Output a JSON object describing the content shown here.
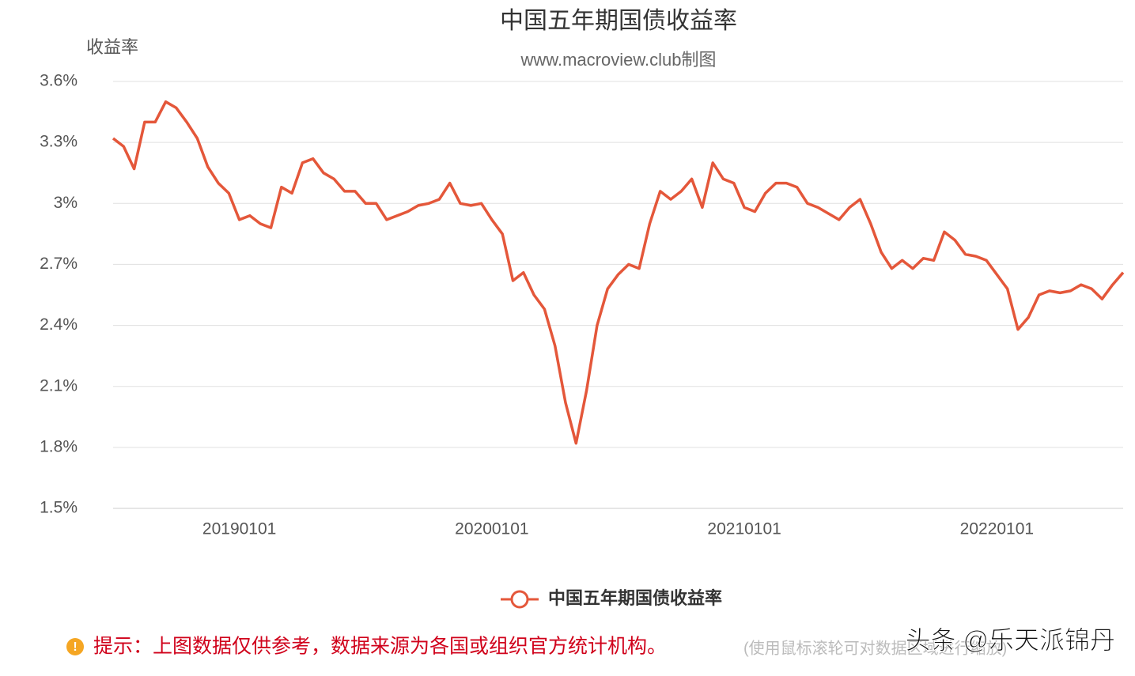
{
  "chart_data": {
    "type": "line",
    "title": "中国五年期国债收益率",
    "subtitle": "www.macroview.club制图",
    "y_label": "收益率",
    "categories": [
      "20180701",
      "20180716",
      "20180801",
      "20180816",
      "20180901",
      "20180916",
      "20181001",
      "20181016",
      "20181101",
      "20181116",
      "20181201",
      "20181216",
      "20190101",
      "20190116",
      "20190201",
      "20190216",
      "20190301",
      "20190316",
      "20190401",
      "20190416",
      "20190501",
      "20190516",
      "20190601",
      "20190616",
      "20190701",
      "20190716",
      "20190801",
      "20190816",
      "20190901",
      "20190916",
      "20191001",
      "20191016",
      "20191101",
      "20191116",
      "20191201",
      "20191216",
      "20200101",
      "20200116",
      "20200201",
      "20200216",
      "20200301",
      "20200316",
      "20200401",
      "20200416",
      "20200501",
      "20200516",
      "20200601",
      "20200616",
      "20200701",
      "20200716",
      "20200801",
      "20200816",
      "20200901",
      "20200916",
      "20201001",
      "20201016",
      "20201101",
      "20201116",
      "20201201",
      "20201216",
      "20210101",
      "20210116",
      "20210201",
      "20210216",
      "20210301",
      "20210316",
      "20210401",
      "20210416",
      "20210501",
      "20210516",
      "20210601",
      "20210616",
      "20210701",
      "20210716",
      "20210801",
      "20210816",
      "20210901",
      "20210916",
      "20211001",
      "20211016",
      "20211101",
      "20211116",
      "20211201",
      "20211216",
      "20220101",
      "20220116",
      "20220201",
      "20220216",
      "20220301",
      "20220316",
      "20220401",
      "20220416",
      "20220501",
      "20220516",
      "20220601",
      "20220616",
      "20220701"
    ],
    "series": [
      {
        "name": "中国五年期国债收益率",
        "color": "#e4573a",
        "values": [
          3.32,
          3.28,
          3.17,
          3.4,
          3.4,
          3.5,
          3.47,
          3.4,
          3.32,
          3.18,
          3.1,
          3.05,
          2.92,
          2.94,
          2.9,
          2.88,
          3.08,
          3.05,
          3.2,
          3.22,
          3.15,
          3.12,
          3.06,
          3.06,
          3.0,
          3.0,
          2.92,
          2.94,
          2.96,
          2.99,
          3.0,
          3.02,
          3.1,
          3.0,
          2.99,
          3.0,
          2.92,
          2.85,
          2.62,
          2.66,
          2.55,
          2.48,
          2.3,
          2.02,
          1.82,
          2.08,
          2.4,
          2.58,
          2.65,
          2.7,
          2.68,
          2.9,
          3.06,
          3.02,
          3.06,
          3.12,
          2.98,
          3.2,
          3.12,
          3.1,
          2.98,
          2.96,
          3.05,
          3.1,
          3.1,
          3.08,
          3.0,
          2.98,
          2.95,
          2.92,
          2.98,
          3.02,
          2.9,
          2.76,
          2.68,
          2.72,
          2.68,
          2.73,
          2.72,
          2.86,
          2.82,
          2.75,
          2.74,
          2.72,
          2.65,
          2.58,
          2.38,
          2.44,
          2.55,
          2.57,
          2.56,
          2.57,
          2.6,
          2.58,
          2.53,
          2.6,
          2.66
        ]
      }
    ],
    "xticks": [
      "20190101",
      "20200101",
      "20210101",
      "20220101"
    ],
    "ylim": [
      1.5,
      3.6
    ],
    "yticks": [
      {
        "value": 1.5,
        "label": "1.5%"
      },
      {
        "value": 1.8,
        "label": "1.8%"
      },
      {
        "value": 2.1,
        "label": "2.1%"
      },
      {
        "value": 2.4,
        "label": "2.4%"
      },
      {
        "value": 2.7,
        "label": "2.7%"
      },
      {
        "value": 3,
        "label": "3%"
      },
      {
        "value": 3.3,
        "label": "3.3%"
      },
      {
        "value": 3.6,
        "label": "3.6%"
      }
    ],
    "grid": true,
    "legend": "bottom"
  },
  "footer": {
    "note": "提示：上图数据仅供参考，数据来源为各国或组织官方统计机构。",
    "hint": "(使用鼠标滚轮可对数据区域进行缩放)",
    "watermark": "头条 @乐天派锦丹"
  }
}
